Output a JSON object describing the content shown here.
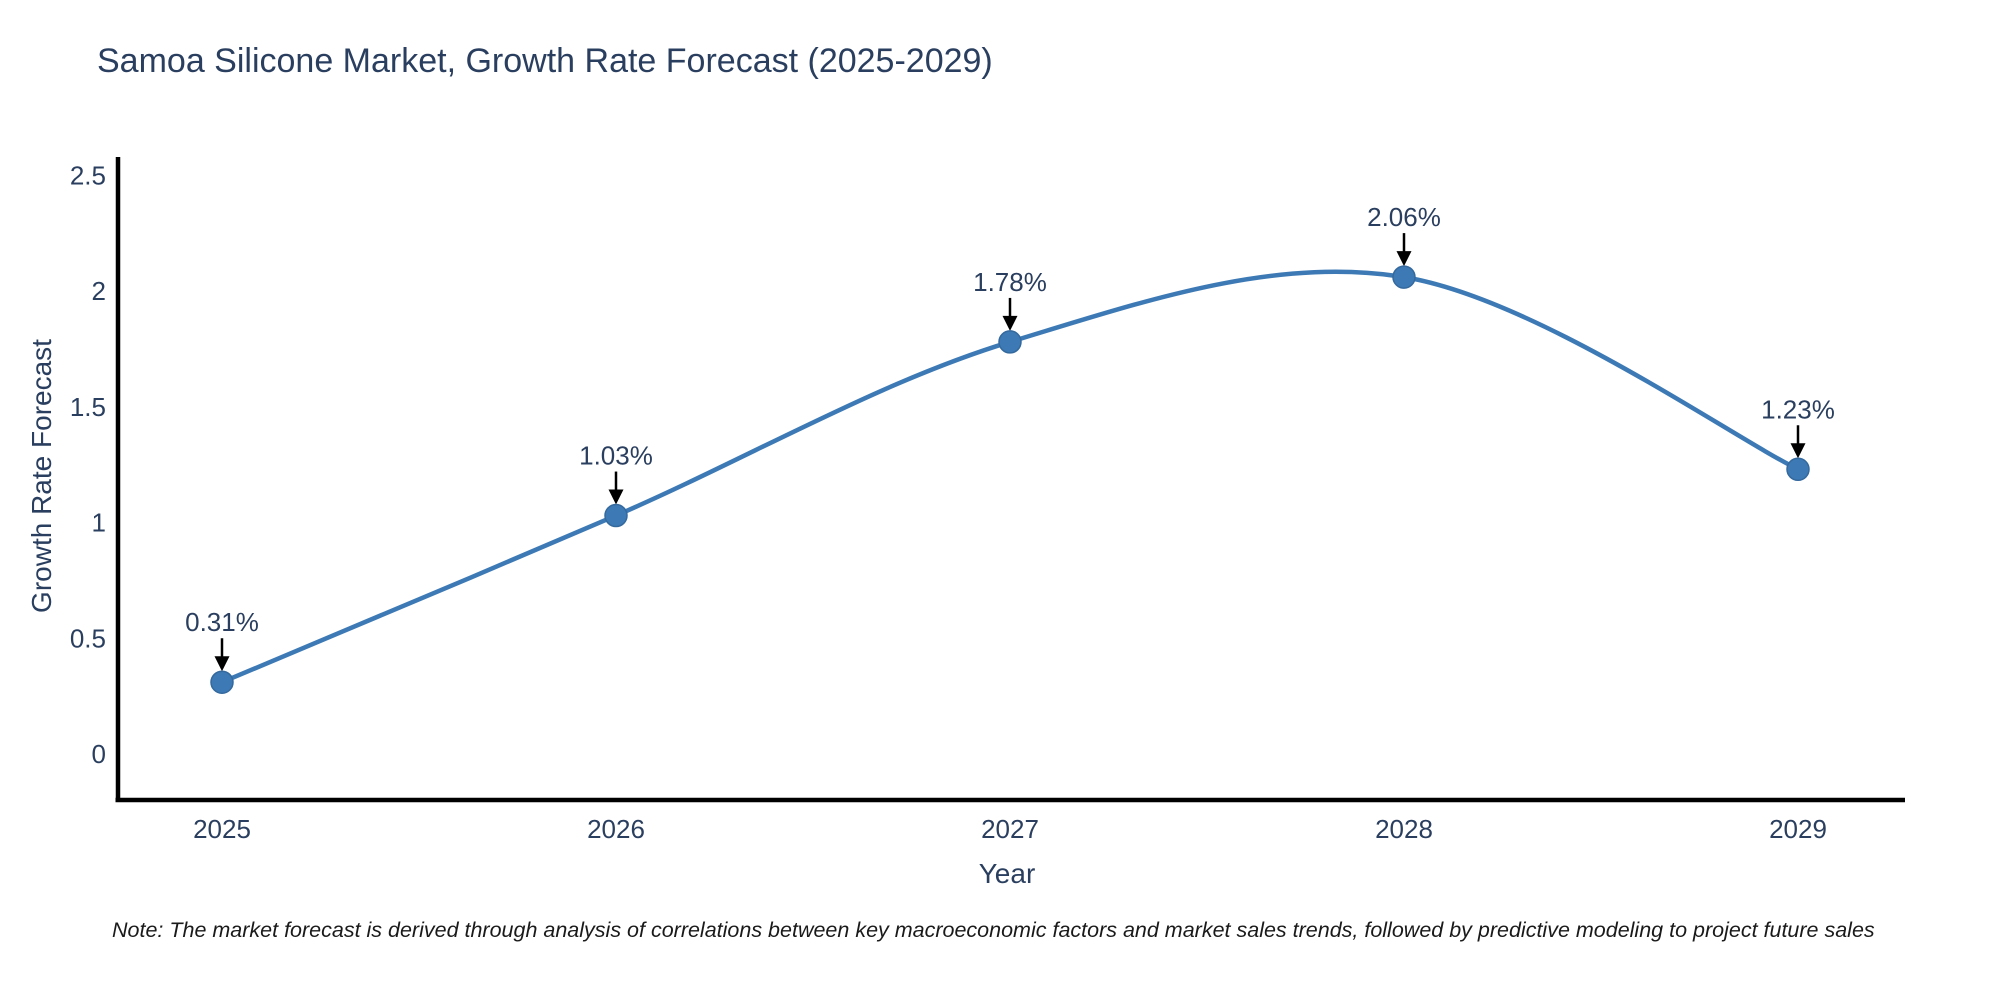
{
  "title": {
    "text": "Samoa Silicone Market, Growth Rate Forecast (2025-2029)",
    "color": "#2a3f5f"
  },
  "note": {
    "text": "Note: The market forecast is derived through analysis of correlations between key macroeconomic factors and market sales trends, followed by predictive modeling to project future sales"
  },
  "chart_data": {
    "type": "line",
    "title": "Samoa Silicone Market, Growth Rate Forecast (2025-2029)",
    "x": [
      2025,
      2026,
      2027,
      2028,
      2029
    ],
    "xticklabels": [
      "2025",
      "2026",
      "2027",
      "2028",
      "2029"
    ],
    "series": [
      {
        "name": "Growth Rate Forecast",
        "values": [
          0.31,
          1.03,
          1.78,
          2.06,
          1.23
        ]
      }
    ],
    "annotations": [
      "0.31%",
      "1.03%",
      "1.78%",
      "2.06%",
      "1.23%"
    ],
    "xlabel": "Year",
    "ylabel": "Growth Rate Forecast",
    "yticks": [
      0,
      0.5,
      1,
      1.5,
      2,
      2.5
    ],
    "yticklabels": [
      "0",
      "0.5",
      "1",
      "1.5",
      "2",
      "2.5"
    ],
    "ylim": [
      -0.21,
      2.56
    ],
    "grid": false,
    "legend": "none",
    "line_shape": "spline",
    "colors": {
      "line": "#3d7ab5",
      "marker": "#3d7ab5",
      "marker_edge": "#34699e",
      "axis": "#000000",
      "tick_text": "#2a3f5f",
      "annotation_text": "#2a3f5f",
      "annotation_arrow": "#000000"
    }
  }
}
